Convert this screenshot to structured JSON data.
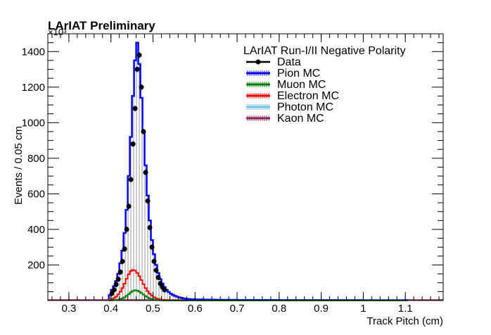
{
  "chart_data": {
    "type": "histogram",
    "title": "LArIAT Preliminary",
    "exponent_label": "×10³",
    "xlabel": "Track Pitch (cm)",
    "ylabel": "Events / 0.05 cm",
    "xlim": [
      0.25,
      1.19
    ],
    "ylim": [
      0,
      1500
    ],
    "x_ticks": [
      "0.3",
      "0.4",
      "0.5",
      "0.6",
      "0.7",
      "0.8",
      "0.9",
      "1",
      "1.1"
    ],
    "x_tick_values": [
      0.3,
      0.4,
      0.5,
      0.6,
      0.7,
      0.8,
      0.9,
      1.0,
      1.1
    ],
    "y_ticks": [
      "200",
      "400",
      "600",
      "800",
      "1000",
      "1200",
      "1400"
    ],
    "y_tick_values": [
      200,
      400,
      600,
      800,
      1000,
      1200,
      1400
    ],
    "legend": {
      "header": "LArIAT Run-I/II Negative Polarity",
      "placement": "top-right",
      "entries": [
        {
          "name": "Data",
          "color": "#000000",
          "style": "marker"
        },
        {
          "name": "Pion MC",
          "color": "#0000ff",
          "style": "hatch"
        },
        {
          "name": "Muon MC",
          "color": "#008000",
          "style": "hatch"
        },
        {
          "name": "Electron MC",
          "color": "#ff0000",
          "style": "hatch"
        },
        {
          "name": "Photon MC",
          "color": "#87ceeb",
          "style": "band"
        },
        {
          "name": "Kaon MC",
          "color": "#8b2252",
          "style": "hatch"
        }
      ]
    },
    "bins": [
      0.395,
      0.4,
      0.405,
      0.41,
      0.415,
      0.42,
      0.425,
      0.43,
      0.435,
      0.44,
      0.445,
      0.45,
      0.455,
      0.46,
      0.465,
      0.47,
      0.475,
      0.48,
      0.485,
      0.49,
      0.495,
      0.5,
      0.505,
      0.51,
      0.515,
      0.52,
      0.525,
      0.53,
      0.535,
      0.54,
      0.545,
      0.55,
      0.555,
      0.56,
      0.565,
      0.57,
      0.575,
      0.58,
      0.585,
      0.59,
      0.6,
      0.62,
      0.65,
      0.7,
      0.8,
      0.9,
      1.0,
      1.1
    ],
    "series": [
      {
        "name": "Pion MC",
        "color": "#0000ff",
        "values": [
          30,
          60,
          80,
          110,
          150,
          210,
          280,
          380,
          510,
          700,
          920,
          1150,
          1350,
          1450,
          1330,
          1140,
          950,
          760,
          590,
          450,
          340,
          260,
          200,
          155,
          120,
          95,
          75,
          60,
          48,
          38,
          32,
          26,
          22,
          18,
          15,
          12,
          10,
          9,
          8,
          7,
          6,
          5,
          4,
          3,
          2,
          2,
          1,
          1
        ]
      },
      {
        "name": "Electron MC",
        "color": "#ff0000",
        "values": [
          4,
          8,
          14,
          22,
          34,
          50,
          70,
          95,
          122,
          148,
          165,
          172,
          168,
          155,
          137,
          115,
          92,
          70,
          52,
          38,
          27,
          19,
          13,
          9,
          7,
          5,
          4,
          3,
          2,
          2,
          1,
          1,
          1,
          1,
          1,
          0,
          0,
          0,
          0,
          0,
          0,
          0,
          0,
          0,
          0,
          0,
          0,
          0
        ]
      },
      {
        "name": "Muon MC",
        "color": "#008000",
        "values": [
          0,
          1,
          2,
          3,
          5,
          8,
          12,
          18,
          26,
          36,
          46,
          54,
          58,
          56,
          50,
          42,
          33,
          25,
          18,
          12,
          8,
          5,
          3,
          2,
          1,
          1,
          0,
          0,
          0,
          0,
          0,
          0,
          0,
          0,
          0,
          0,
          0,
          0,
          0,
          0,
          0,
          0,
          0,
          0,
          0,
          0,
          0,
          0
        ]
      },
      {
        "name": "Data",
        "color": "#000000",
        "x": [
          0.4,
          0.405,
          0.41,
          0.415,
          0.42,
          0.425,
          0.43,
          0.435,
          0.44,
          0.445,
          0.45,
          0.455,
          0.46,
          0.465,
          0.47,
          0.475,
          0.48,
          0.485,
          0.49,
          0.495,
          0.5,
          0.505,
          0.51,
          0.515,
          0.52,
          0.525
        ],
        "values": [
          40,
          60,
          90,
          120,
          160,
          220,
          290,
          400,
          530,
          680,
          880,
          1080,
          1300,
          1380,
          1200,
          950,
          720,
          560,
          410,
          300,
          220,
          170,
          130,
          95,
          75,
          60
        ]
      }
    ]
  }
}
